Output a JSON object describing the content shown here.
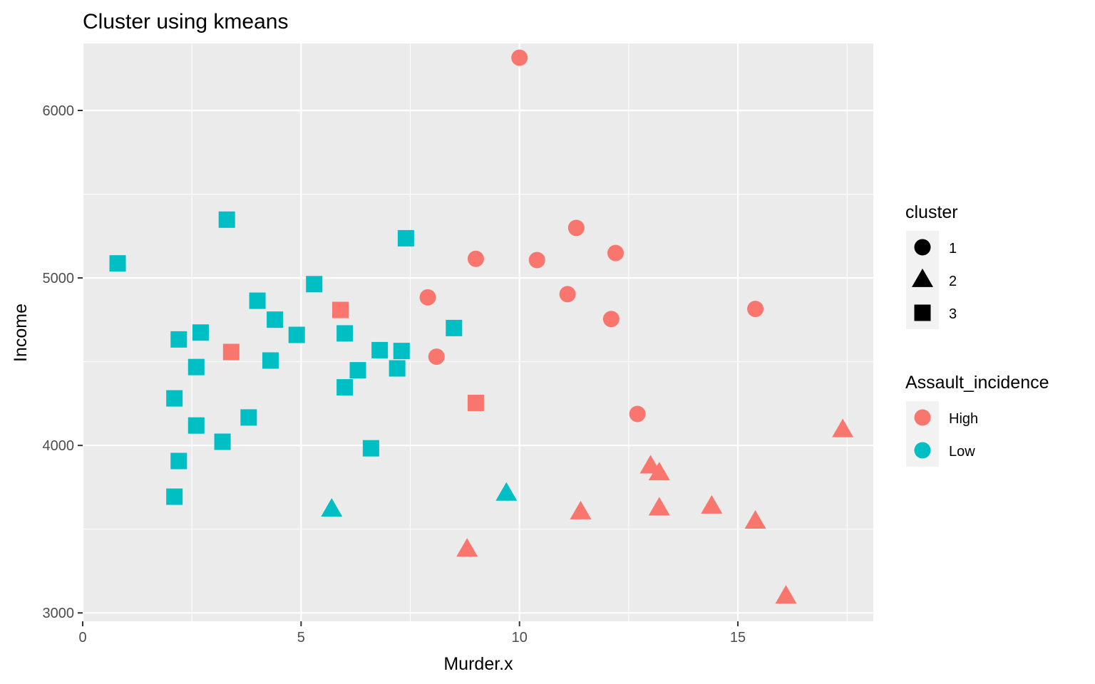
{
  "chart_data": {
    "type": "scatter",
    "title": "Cluster using kmeans",
    "xlabel": "Murder.x",
    "ylabel": "Income",
    "xlim": [
      0,
      18.1
    ],
    "ylim": [
      2950,
      6400
    ],
    "x_ticks": [
      0,
      5,
      10,
      15
    ],
    "x_tick_labels": [
      "0",
      "5",
      "10",
      "15"
    ],
    "x_minor_ticks": [
      2.5,
      7.5,
      12.5,
      17.5
    ],
    "y_ticks": [
      3000,
      4000,
      5000,
      6000
    ],
    "y_tick_labels": [
      "3000",
      "4000",
      "5000",
      "6000"
    ],
    "y_minor_ticks": [
      3500,
      4500,
      5500
    ],
    "grid": true,
    "colors": {
      "panel_bg": "#ebebeb",
      "grid": "#ffffff",
      "High": "#f8766d",
      "Low": "#00bfc4",
      "legend_key_bg": "#f2f2f2",
      "legend_shape": "#000000"
    },
    "legend_position": "right",
    "legends": [
      {
        "title": "cluster",
        "kind": "shape",
        "entries": [
          {
            "label": "1",
            "shape": "circle"
          },
          {
            "label": "2",
            "shape": "triangle"
          },
          {
            "label": "3",
            "shape": "square"
          }
        ]
      },
      {
        "title": "Assault_incidence",
        "kind": "color",
        "entries": [
          {
            "label": "High",
            "color": "#f8766d"
          },
          {
            "label": "Low",
            "color": "#00bfc4"
          }
        ]
      }
    ],
    "points": [
      {
        "x": 10.0,
        "y": 6315,
        "cluster": "1",
        "assault": "High"
      },
      {
        "x": 11.3,
        "y": 5299,
        "cluster": "1",
        "assault": "High"
      },
      {
        "x": 12.2,
        "y": 5149,
        "cluster": "1",
        "assault": "High"
      },
      {
        "x": 9.0,
        "y": 5114,
        "cluster": "1",
        "assault": "High"
      },
      {
        "x": 10.4,
        "y": 5107,
        "cluster": "1",
        "assault": "High"
      },
      {
        "x": 11.1,
        "y": 4903,
        "cluster": "1",
        "assault": "High"
      },
      {
        "x": 7.9,
        "y": 4884,
        "cluster": "1",
        "assault": "High"
      },
      {
        "x": 15.4,
        "y": 4815,
        "cluster": "1",
        "assault": "High"
      },
      {
        "x": 12.1,
        "y": 4755,
        "cluster": "1",
        "assault": "High"
      },
      {
        "x": 8.1,
        "y": 4530,
        "cluster": "1",
        "assault": "High"
      },
      {
        "x": 12.7,
        "y": 4188,
        "cluster": "1",
        "assault": "High"
      },
      {
        "x": 17.4,
        "y": 4091,
        "cluster": "2",
        "assault": "High"
      },
      {
        "x": 13.0,
        "y": 3875,
        "cluster": "2",
        "assault": "High"
      },
      {
        "x": 13.2,
        "y": 3834,
        "cluster": "2",
        "assault": "High"
      },
      {
        "x": 13.2,
        "y": 3624,
        "cluster": "2",
        "assault": "High"
      },
      {
        "x": 14.4,
        "y": 3635,
        "cluster": "2",
        "assault": "High"
      },
      {
        "x": 11.4,
        "y": 3601,
        "cluster": "2",
        "assault": "High"
      },
      {
        "x": 15.4,
        "y": 3545,
        "cluster": "2",
        "assault": "High"
      },
      {
        "x": 8.8,
        "y": 3378,
        "cluster": "2",
        "assault": "High"
      },
      {
        "x": 16.1,
        "y": 3098,
        "cluster": "2",
        "assault": "High"
      },
      {
        "x": 9.7,
        "y": 3712,
        "cluster": "2",
        "assault": "Low"
      },
      {
        "x": 5.7,
        "y": 3617,
        "cluster": "2",
        "assault": "Low"
      },
      {
        "x": 5.9,
        "y": 4809,
        "cluster": "3",
        "assault": "High"
      },
      {
        "x": 3.4,
        "y": 4558,
        "cluster": "3",
        "assault": "High"
      },
      {
        "x": 9.0,
        "y": 4254,
        "cluster": "3",
        "assault": "High"
      },
      {
        "x": 3.3,
        "y": 5348,
        "cluster": "3",
        "assault": "Low"
      },
      {
        "x": 7.4,
        "y": 5237,
        "cluster": "3",
        "assault": "Low"
      },
      {
        "x": 0.8,
        "y": 5087,
        "cluster": "3",
        "assault": "Low"
      },
      {
        "x": 5.3,
        "y": 4963,
        "cluster": "3",
        "assault": "Low"
      },
      {
        "x": 4.0,
        "y": 4864,
        "cluster": "3",
        "assault": "Low"
      },
      {
        "x": 4.4,
        "y": 4751,
        "cluster": "3",
        "assault": "Low"
      },
      {
        "x": 8.5,
        "y": 4701,
        "cluster": "3",
        "assault": "Low"
      },
      {
        "x": 2.7,
        "y": 4674,
        "cluster": "3",
        "assault": "Low"
      },
      {
        "x": 6.0,
        "y": 4669,
        "cluster": "3",
        "assault": "Low"
      },
      {
        "x": 4.9,
        "y": 4660,
        "cluster": "3",
        "assault": "Low"
      },
      {
        "x": 2.2,
        "y": 4633,
        "cluster": "3",
        "assault": "Low"
      },
      {
        "x": 6.8,
        "y": 4569,
        "cluster": "3",
        "assault": "Low"
      },
      {
        "x": 7.3,
        "y": 4564,
        "cluster": "3",
        "assault": "Low"
      },
      {
        "x": 4.3,
        "y": 4507,
        "cluster": "3",
        "assault": "Low"
      },
      {
        "x": 2.6,
        "y": 4468,
        "cluster": "3",
        "assault": "Low"
      },
      {
        "x": 7.2,
        "y": 4460,
        "cluster": "3",
        "assault": "Low"
      },
      {
        "x": 6.3,
        "y": 4449,
        "cluster": "3",
        "assault": "Low"
      },
      {
        "x": 6.0,
        "y": 4347,
        "cluster": "3",
        "assault": "Low"
      },
      {
        "x": 2.1,
        "y": 4281,
        "cluster": "3",
        "assault": "Low"
      },
      {
        "x": 3.8,
        "y": 4167,
        "cluster": "3",
        "assault": "Low"
      },
      {
        "x": 2.6,
        "y": 4119,
        "cluster": "3",
        "assault": "Low"
      },
      {
        "x": 3.2,
        "y": 4022,
        "cluster": "3",
        "assault": "Low"
      },
      {
        "x": 6.6,
        "y": 3983,
        "cluster": "3",
        "assault": "Low"
      },
      {
        "x": 2.2,
        "y": 3907,
        "cluster": "3",
        "assault": "Low"
      },
      {
        "x": 2.1,
        "y": 3694,
        "cluster": "3",
        "assault": "Low"
      }
    ]
  }
}
